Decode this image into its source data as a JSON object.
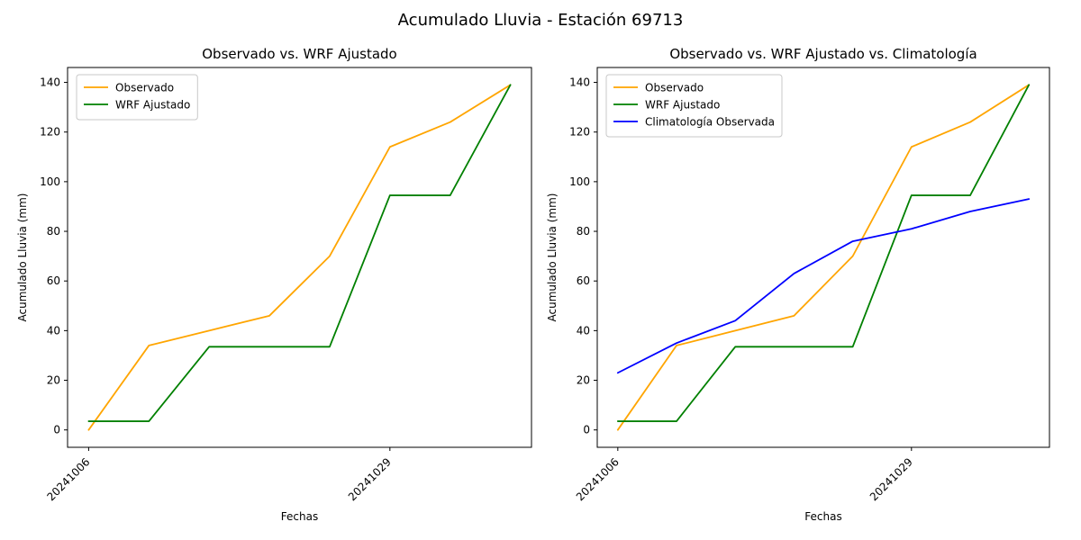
{
  "figure": {
    "title": "Acumulado Lluvia - Estación 69713",
    "background_color": "#ffffff",
    "text_color": "#000000"
  },
  "chart_data": [
    {
      "type": "line",
      "title": "Observado vs. WRF Ajustado",
      "xlabel": "Fechas",
      "ylabel": "Acumulado Lluvia (mm)",
      "grid": false,
      "legend_position": "upper left",
      "x": [
        0,
        1,
        2,
        3,
        4,
        5,
        6,
        7
      ],
      "xlim": [
        -0.35,
        7.35
      ],
      "ylim": [
        -7,
        146
      ],
      "yticks": [
        0,
        20,
        40,
        60,
        80,
        100,
        120,
        140
      ],
      "x_ticks": [
        {
          "index": 0,
          "label": "20241006"
        },
        {
          "index": 5,
          "label": "20241029"
        }
      ],
      "series": [
        {
          "name": "Observado",
          "color": "#ffa500",
          "values": [
            0,
            34,
            40,
            46,
            70,
            114,
            124,
            139
          ]
        },
        {
          "name": "WRF Ajustado",
          "color": "#008000",
          "values": [
            3.5,
            3.5,
            33.5,
            33.5,
            33.5,
            94.5,
            94.5,
            139
          ]
        }
      ]
    },
    {
      "type": "line",
      "title": "Observado vs. WRF Ajustado vs. Climatología",
      "xlabel": "Fechas",
      "ylabel": "Acumulado Lluvia (mm)",
      "grid": false,
      "legend_position": "upper left",
      "x": [
        0,
        1,
        2,
        3,
        4,
        5,
        6,
        7
      ],
      "xlim": [
        -0.35,
        7.35
      ],
      "ylim": [
        -7,
        146
      ],
      "yticks": [
        0,
        20,
        40,
        60,
        80,
        100,
        120,
        140
      ],
      "x_ticks": [
        {
          "index": 0,
          "label": "20241006"
        },
        {
          "index": 5,
          "label": "20241029"
        }
      ],
      "series": [
        {
          "name": "Observado",
          "color": "#ffa500",
          "values": [
            0,
            34,
            40,
            46,
            70,
            114,
            124,
            139
          ]
        },
        {
          "name": "WRF Ajustado",
          "color": "#008000",
          "values": [
            3.5,
            3.5,
            33.5,
            33.5,
            33.5,
            94.5,
            94.5,
            139
          ]
        },
        {
          "name": "Climatología Observada",
          "color": "#0000ff",
          "values": [
            23,
            35,
            44,
            63,
            76,
            81,
            88,
            93
          ]
        }
      ]
    }
  ]
}
